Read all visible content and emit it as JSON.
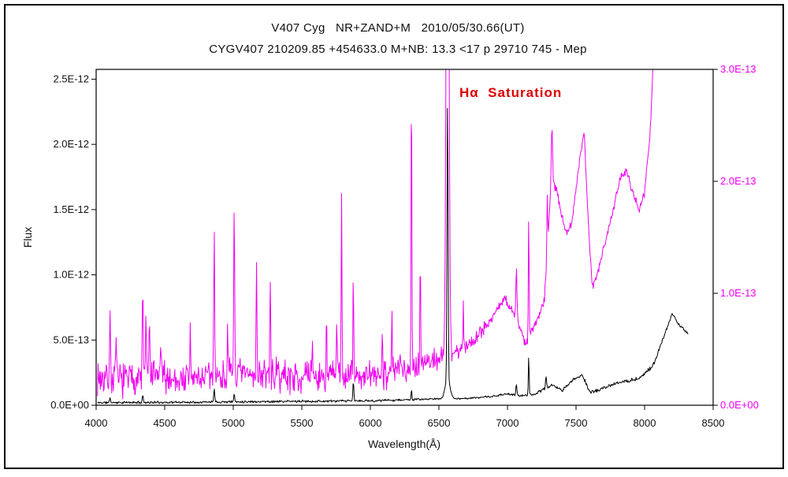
{
  "window": {
    "background": "#ffffff",
    "border_color": "#000000"
  },
  "chart_data": {
    "type": "line",
    "title_line1": "V407 Cyg   NR+ZAND+M   2010/05/30.66(UT)",
    "title_line2": "CYGV407 210209.85 +454633.0 M+NB: 13.3 <17 p 29710 745 - Mep",
    "annotation": {
      "text": "Hα  Saturation",
      "color": "#dd0000"
    },
    "xlabel": "Wavelength(Å)",
    "ylabel": "Flux",
    "grid": false,
    "legend": "none",
    "x_axis": {
      "min": 4000,
      "max": 8500,
      "tick_values": [
        4000,
        4500,
        5000,
        5500,
        6000,
        6500,
        7000,
        7500,
        8000,
        8500
      ],
      "tick_labels": [
        "4000",
        "4500",
        "5000",
        "5500",
        "6000",
        "6500",
        "7000",
        "7500",
        "8000",
        "8500"
      ]
    },
    "y_axis_left": {
      "min": 0,
      "max": 2.575e-12,
      "color": "#111111",
      "tick_values": [
        0,
        5e-13,
        1e-12,
        1.5e-12,
        2e-12,
        2.5e-12
      ],
      "tick_labels": [
        "0.0E+00",
        "5.0E-13",
        "1.0E-12",
        "1.5E-12",
        "2.0E-12",
        "2.5E-12"
      ]
    },
    "y_axis_right": {
      "min": 0,
      "max": 3e-13,
      "color": "#f000f0",
      "tick_values": [
        0,
        1e-13,
        2e-13,
        3e-13
      ],
      "tick_labels": [
        "0.0E+00",
        "1.0E-13",
        "2.0E-13",
        "3.0E-13"
      ]
    },
    "series": [
      {
        "name": "black-spectrum",
        "axis": "left",
        "color": "#000000",
        "stroke_width": 1,
        "seed": 11,
        "x_start": 4010,
        "x_end": 8320,
        "step": 4,
        "continuum": [
          [
            4010,
            2e-14
          ],
          [
            4500,
            2.2e-14
          ],
          [
            5000,
            2.7e-14
          ],
          [
            5500,
            3e-14
          ],
          [
            6000,
            3.4e-14
          ],
          [
            6450,
            4.8e-14
          ],
          [
            6700,
            5.2e-14
          ],
          [
            6900,
            6.8e-14
          ],
          [
            7000,
            8.8e-14
          ],
          [
            7080,
            7.2e-14
          ],
          [
            7200,
            8.5e-14
          ],
          [
            7320,
            1.55e-13
          ],
          [
            7400,
            1.15e-13
          ],
          [
            7480,
            1.95e-13
          ],
          [
            7545,
            2.35e-13
          ],
          [
            7600,
            1e-13
          ],
          [
            7660,
            1.15e-13
          ],
          [
            7760,
            1.55e-13
          ],
          [
            7860,
            1.85e-13
          ],
          [
            7960,
            2.05e-13
          ],
          [
            8060,
            3e-13
          ],
          [
            8150,
            5.5e-13
          ],
          [
            8200,
            7e-13
          ],
          [
            8250,
            6.2e-13
          ],
          [
            8300,
            5.7e-13
          ],
          [
            8320,
            5.5e-13
          ]
        ],
        "lines": [
          [
            4101,
            4e-14,
            5
          ],
          [
            4340,
            6e-14,
            5
          ],
          [
            4861,
            1.1e-13,
            5
          ],
          [
            5007,
            6e-14,
            5
          ],
          [
            5876,
            1.5e-13,
            5
          ],
          [
            6300,
            8e-14,
            4
          ],
          [
            6563,
            2.15e-12,
            5.5
          ],
          [
            6563,
            1.5e-13,
            25
          ],
          [
            7065,
            9e-14,
            5
          ],
          [
            7155,
            3e-13,
            4
          ],
          [
            7281,
            9e-14,
            5
          ]
        ],
        "noise": [
          [
            4010,
            1.1e-14
          ],
          [
            6000,
            1.1e-14
          ],
          [
            6700,
            7e-15
          ],
          [
            7200,
            1.3e-14
          ],
          [
            8320,
            1.8e-14
          ]
        ]
      },
      {
        "name": "magenta-spectrum",
        "axis": "right",
        "color": "#f000f0",
        "stroke_width": 1,
        "seed": 7,
        "x_start": 4010,
        "x_end": 8090,
        "step": 4,
        "continuum": [
          [
            4010,
            2.5e-14
          ],
          [
            4200,
            2.3e-14
          ],
          [
            4400,
            2.6e-14
          ],
          [
            4600,
            2.3e-14
          ],
          [
            4800,
            2.5e-14
          ],
          [
            5000,
            2.6e-14
          ],
          [
            5200,
            2.8e-14
          ],
          [
            5400,
            2.6e-14
          ],
          [
            5600,
            2.5e-14
          ],
          [
            5800,
            2.7e-14
          ],
          [
            6000,
            2.5e-14
          ],
          [
            6150,
            3e-14
          ],
          [
            6300,
            3.6e-14
          ],
          [
            6500,
            4.2e-14
          ],
          [
            6700,
            5.2e-14
          ],
          [
            6850,
            7.2e-14
          ],
          [
            6980,
            9.5e-14
          ],
          [
            7060,
            8e-14
          ],
          [
            7130,
            5.5e-14
          ],
          [
            7210,
            7.5e-14
          ],
          [
            7270,
            9.5e-14
          ],
          [
            7320,
            2.05e-13
          ],
          [
            7360,
            1.9e-13
          ],
          [
            7420,
            1.55e-13
          ],
          [
            7470,
            1.62e-13
          ],
          [
            7520,
            2.15e-13
          ],
          [
            7560,
            2.45e-13
          ],
          [
            7590,
            1.6e-13
          ],
          [
            7620,
            1.05e-13
          ],
          [
            7660,
            1.2e-13
          ],
          [
            7710,
            1.45e-13
          ],
          [
            7770,
            1.75e-13
          ],
          [
            7830,
            2.05e-13
          ],
          [
            7870,
            2.1e-13
          ],
          [
            7910,
            1.9e-13
          ],
          [
            7960,
            1.75e-13
          ],
          [
            8000,
            1.9e-13
          ],
          [
            8040,
            2.4e-13
          ],
          [
            8070,
            3.3e-13
          ],
          [
            8090,
            4.2e-13
          ]
        ],
        "lines": [
          [
            4101,
            5.5e-14,
            5
          ],
          [
            4144,
            3.5e-14,
            4
          ],
          [
            4340,
            7.5e-14,
            5
          ],
          [
            4363,
            6e-14,
            4
          ],
          [
            4388,
            5.5e-14,
            4
          ],
          [
            4471,
            4e-14,
            4
          ],
          [
            4686,
            4.5e-14,
            4
          ],
          [
            4861,
            1.3e-13,
            5
          ],
          [
            4959,
            5.5e-14,
            4
          ],
          [
            5007,
            1.55e-13,
            5
          ],
          [
            5170,
            1.05e-13,
            4
          ],
          [
            5270,
            8.5e-14,
            4
          ],
          [
            5577,
            5e-14,
            3
          ],
          [
            5680,
            4.5e-14,
            4
          ],
          [
            5755,
            5.5e-14,
            4
          ],
          [
            5790,
            1.55e-13,
            4
          ],
          [
            5876,
            9.5e-14,
            4
          ],
          [
            6087,
            4.5e-14,
            4
          ],
          [
            6157,
            5e-14,
            4
          ],
          [
            6300,
            2.6e-13,
            4
          ],
          [
            6364,
            9.5e-14,
            4
          ],
          [
            6563,
            6e-13,
            13
          ],
          [
            6678,
            4e-14,
            4
          ],
          [
            7065,
            4.5e-14,
            5
          ],
          [
            7155,
            1.1e-13,
            4
          ],
          [
            7290,
            5e-14,
            4
          ],
          [
            7325,
            4.5e-14,
            6
          ]
        ],
        "noise": [
          [
            4010,
            1.8e-14
          ],
          [
            6200,
            1.7e-14
          ],
          [
            6600,
            1e-14
          ],
          [
            7000,
            6e-15
          ],
          [
            7300,
            5e-15
          ],
          [
            8090,
            5e-15
          ]
        ]
      }
    ]
  }
}
